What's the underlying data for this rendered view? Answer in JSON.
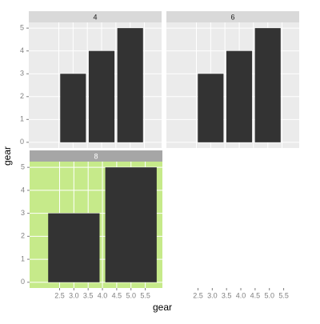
{
  "chart_data": {
    "type": "bar",
    "xlabel": "gear",
    "ylabel": "gear",
    "xlim": [
      1.45,
      6.1
    ],
    "ylim": [
      -0.25,
      5.25
    ],
    "xticks": [
      2.5,
      {
        "value": 3,
        "label": "3.0"
      },
      3.5,
      {
        "value": 4,
        "label": "4.0"
      },
      4.5,
      {
        "value": 5,
        "label": "5.0"
      },
      5.5
    ],
    "yticks": [
      0,
      1,
      2,
      3,
      4,
      5
    ],
    "color": "#333333",
    "panel_color": "#ebebeb",
    "strip_color": "#d9d9d9",
    "grid": true,
    "facets": [
      {
        "label": "4",
        "x": [
          3,
          4,
          5
        ],
        "values": [
          3,
          4,
          5
        ]
      },
      {
        "label": "6",
        "x": [
          3,
          4,
          5
        ],
        "values": [
          3,
          4,
          5
        ]
      },
      {
        "label": "8",
        "x": [
          3,
          5
        ],
        "values": [
          3,
          5
        ],
        "panel_color": "#c6ea8a",
        "strip_color": "#a6a6a6"
      }
    ]
  }
}
